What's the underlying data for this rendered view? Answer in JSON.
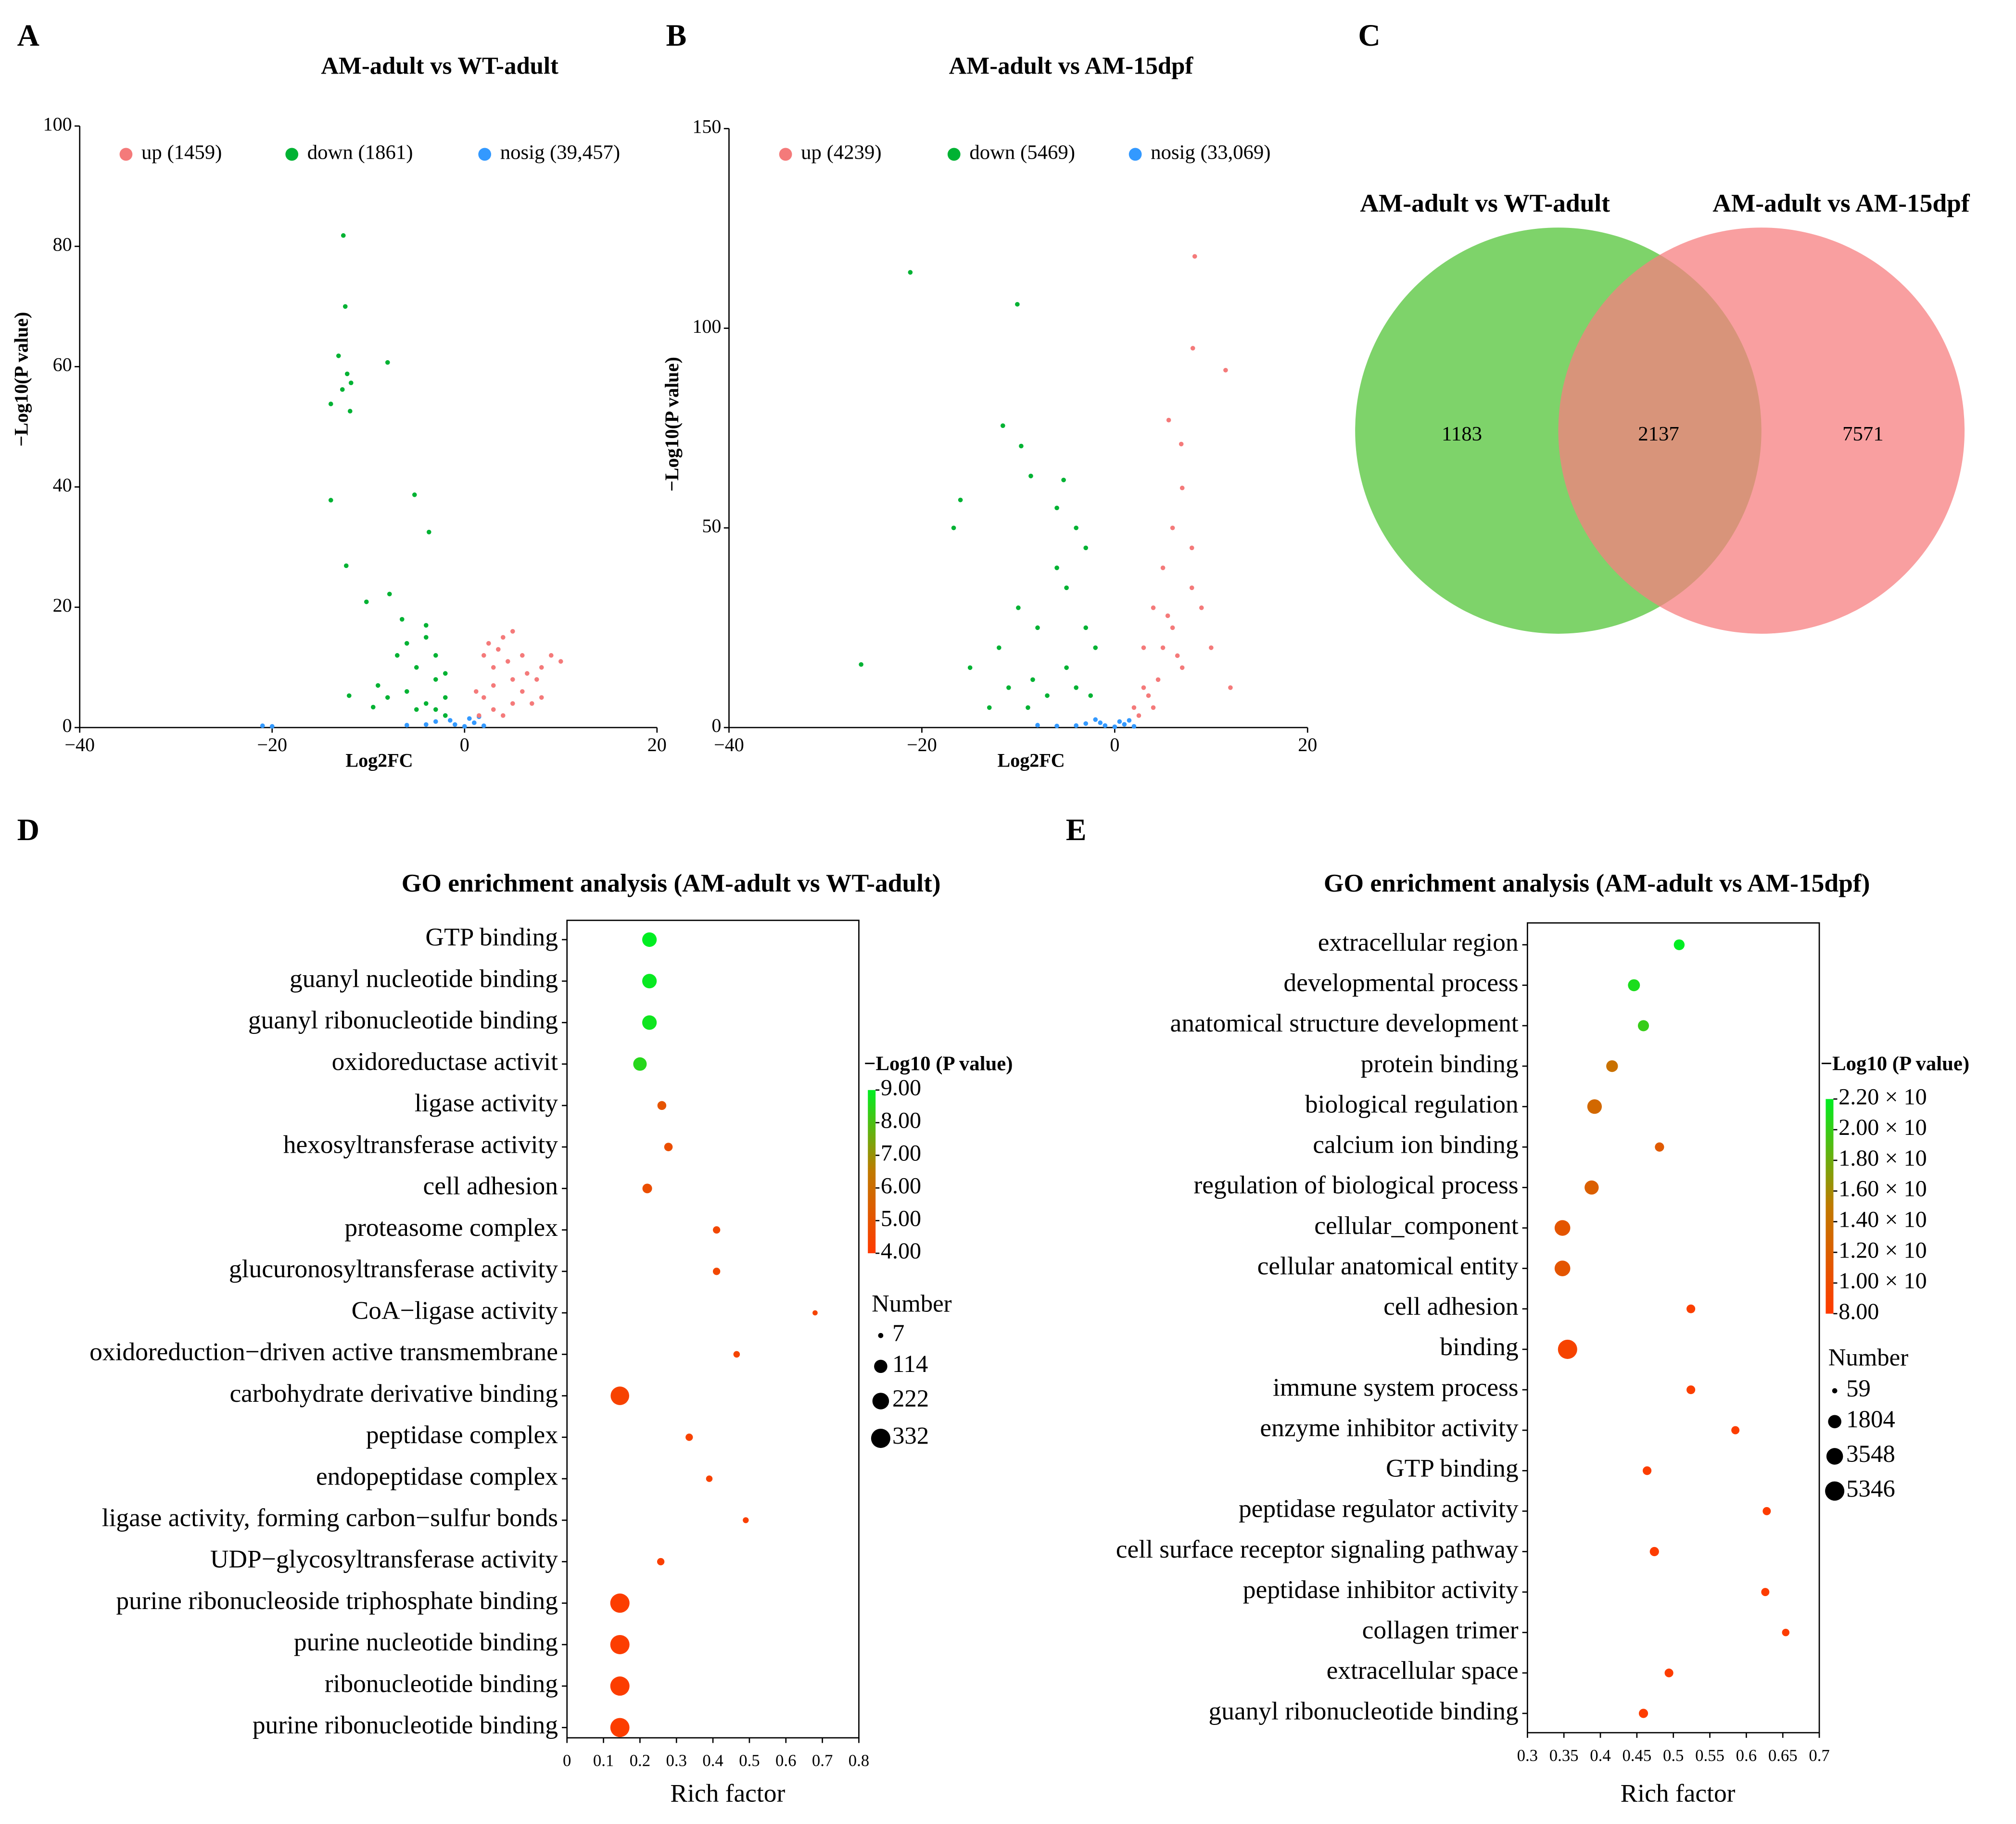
{
  "chart_data": [
    {
      "type": "volcano",
      "panel_label": "A",
      "title": "AM-adult vs WT-adult",
      "x_label": "Log2FC",
      "y_label": "−Log10(P value)",
      "xlim": [
        -40,
        20
      ],
      "xticks": [
        {
          "value": -40,
          "label": "−40"
        },
        {
          "value": -20,
          "label": "−20"
        },
        0,
        20
      ],
      "ylim": [
        0,
        100
      ],
      "yticks": [
        0,
        20,
        40,
        60,
        80,
        100
      ],
      "series": [
        {
          "name": "up (1459)",
          "color": "#f47a7a",
          "x": [
            2,
            3,
            4,
            5,
            3,
            5,
            6,
            8,
            9,
            10,
            2,
            4,
            6,
            7,
            1.5,
            3,
            5,
            8,
            2.5,
            4.5,
            6.5,
            1.2,
            3.5,
            7.5
          ],
          "values": [
            5,
            10,
            15,
            16,
            3,
            8,
            6,
            10,
            12,
            11,
            12,
            2,
            12,
            4,
            2,
            7,
            4,
            5,
            14,
            11,
            9,
            6,
            13,
            8
          ]
        },
        {
          "name": "down (1861)",
          "color": "#00b233",
          "x": [
            -12.6,
            -12.4,
            -13.1,
            -8,
            -12.2,
            -11.8,
            -12.7,
            -13.9,
            -11.9,
            -5.2,
            -13.9,
            -3.7,
            -12.3,
            -10.2,
            -7.8,
            -12,
            -9.5,
            -5,
            -4,
            -3,
            -6,
            -2,
            -3,
            -4,
            -7,
            -5,
            -2,
            -8,
            -3,
            -4,
            -6,
            -2,
            -9,
            -6.5
          ],
          "values": [
            81.8,
            70,
            61.8,
            60.7,
            58.8,
            57.3,
            56.2,
            53.8,
            52.6,
            38.7,
            37.8,
            32.5,
            26.9,
            20.9,
            22.2,
            5.3,
            3.4,
            10,
            15,
            8,
            6,
            5,
            3,
            4,
            12,
            3,
            2,
            5,
            12,
            17,
            14,
            9,
            7,
            18
          ]
        },
        {
          "name": "nosig (39,457)",
          "color": "#3399ff",
          "x": [
            -21,
            -20,
            -3,
            -1,
            0,
            1,
            -2,
            0.5,
            -4,
            2,
            -6,
            -1.5,
            1.5
          ],
          "values": [
            0.3,
            0.2,
            1,
            0.5,
            0.2,
            0.8,
            2,
            1.5,
            0.5,
            0.3,
            0.4,
            1.2,
            1.8
          ]
        }
      ]
    },
    {
      "type": "volcano",
      "panel_label": "B",
      "title": "AM-adult vs AM-15dpf",
      "x_label": "Log2FC",
      "y_label": "−Log10(P value)",
      "xlim": [
        -40,
        20
      ],
      "xticks": [
        {
          "value": -40,
          "label": "−40"
        },
        {
          "value": -20,
          "label": "−20"
        },
        0,
        20
      ],
      "ylim": [
        0,
        150
      ],
      "yticks": [
        0,
        50,
        100,
        150
      ],
      "series": [
        {
          "name": "up (4239)",
          "color": "#f47a7a",
          "x": [
            8.3,
            8.1,
            11.5,
            5.6,
            6.9,
            3,
            4,
            5,
            6,
            7,
            8,
            5,
            3,
            4,
            6,
            9,
            10,
            12,
            2,
            7,
            8,
            4.5,
            3.5,
            5.5,
            6.5,
            2.5
          ],
          "values": [
            118,
            95,
            89.5,
            77,
            71,
            20,
            30,
            40,
            50,
            60,
            45,
            20,
            10,
            5,
            25,
            30,
            20,
            10,
            5,
            15,
            35,
            12,
            8,
            28,
            18,
            3
          ]
        },
        {
          "name": "down (5469)",
          "color": "#00b233",
          "x": [
            -21.2,
            -10.1,
            -11.6,
            -9.7,
            -16,
            -8.7,
            -5.3,
            -16.7,
            -26.3,
            -15,
            -12,
            -10,
            -8,
            -6,
            -5,
            -4,
            -3,
            -2,
            -4,
            -7,
            -9,
            -11,
            -3,
            -5,
            -13,
            -6,
            -2.5,
            -8.5
          ],
          "values": [
            114,
            106,
            75.6,
            70.5,
            57,
            63,
            62,
            50,
            15.8,
            15,
            20,
            30,
            25,
            40,
            35,
            50,
            45,
            20,
            10,
            8,
            5,
            10,
            25,
            15,
            5,
            55,
            8,
            12
          ]
        },
        {
          "name": "nosig (33,069)",
          "color": "#3399ff",
          "x": [
            -3,
            -1,
            0,
            1,
            -2,
            0.5,
            -4,
            2,
            -6,
            -1.5,
            1.5,
            -8
          ],
          "values": [
            1,
            0.5,
            0.2,
            0.8,
            2,
            1.5,
            0.5,
            0.3,
            0.4,
            1.2,
            1.8,
            0.6
          ]
        }
      ]
    },
    {
      "type": "venn",
      "panel_label": "C",
      "sets": [
        {
          "name": "AM-adult vs WT-adult",
          "color": "#7ed36a"
        },
        {
          "name": "AM-adult vs AM-15dpf",
          "color": "#f77f80"
        }
      ],
      "values": [
        1183,
        2137,
        7571
      ]
    },
    {
      "type": "dot",
      "panel_label": "D",
      "title": "GO enrichment analysis (AM-adult vs WT-adult)",
      "x_label": "Rich factor",
      "categories": [
        "GTP binding",
        "guanyl nucleotide binding",
        "guanyl ribonucleotide binding",
        "oxidoreductase activit",
        "ligase activity",
        "hexosyltransferase activity",
        "cell adhesion",
        "proteasome complex",
        "glucuronosyltransferase activity",
        "CoA−ligase activity",
        "oxidoreduction−driven active transmembrane",
        "carbohydrate derivative binding",
        "peptidase complex",
        "endopeptidase complex",
        "ligase activity, forming carbon−sulfur bonds",
        "UDP−glycosyltransferase activity",
        "purine ribonucleoside triphosphate binding",
        "purine nucleotide binding",
        "ribonucleotide binding",
        "purine ribonucleotide binding"
      ],
      "values": [
        0.226,
        0.226,
        0.226,
        0.2,
        0.26,
        0.278,
        0.22,
        0.41,
        0.41,
        0.68,
        0.465,
        0.145,
        0.335,
        0.39,
        0.49,
        0.257,
        0.145,
        0.145,
        0.145,
        0.145
      ],
      "sizes": [
        150,
        150,
        150,
        120,
        30,
        25,
        40,
        15,
        15,
        7,
        10,
        300,
        15,
        10,
        8,
        15,
        332,
        330,
        330,
        325
      ],
      "color_values": [
        9,
        8.9,
        8.8,
        8.5,
        5,
        4.8,
        4.8,
        4.5,
        4.5,
        4.4,
        4.4,
        4.3,
        4.3,
        4.3,
        4.2,
        4.2,
        4.1,
        4.1,
        4.1,
        4.1
      ],
      "xlim": [
        0,
        0.8
      ],
      "xticks": [
        0,
        0.1,
        0.2,
        0.3,
        0.4,
        0.5,
        0.6,
        0.7,
        0.8
      ],
      "colorbar": {
        "title": "−Log10 (P value)",
        "lim": [
          4,
          9
        ],
        "colors": [
          "#ff3a00",
          "#c07a00",
          "#00ee22"
        ],
        "ticks": [
          {
            "value": 9,
            "label": "9.00"
          },
          {
            "value": 8,
            "label": "8.00"
          },
          {
            "value": 7,
            "label": "7.00"
          },
          {
            "value": 6,
            "label": "6.00"
          },
          {
            "value": 5,
            "label": "5.00"
          },
          {
            "value": 4,
            "label": "4.00"
          }
        ]
      },
      "size_legend": {
        "title": "Number",
        "ticks": [
          7,
          114,
          222,
          332
        ]
      }
    },
    {
      "type": "dot",
      "panel_label": "E",
      "title": "GO enrichment analysis (AM-adult vs AM-15dpf)",
      "x_label": "Rich factor",
      "categories": [
        "extracellular region",
        "developmental process",
        "anatomical structure development",
        "protein binding",
        "biological regulation",
        "calcium ion binding",
        "regulation of biological process",
        "cellular_component",
        "cellular anatomical entity",
        "cell adhesion",
        "binding",
        "immune system process",
        "enzyme inhibitor activity",
        "GTP binding",
        "peptidase regulator activity",
        "cell surface receptor signaling pathway",
        "peptidase inhibitor activity",
        "collagen trimer",
        "extracellular space",
        "guanyl ribonucleotide binding"
      ],
      "values": [
        0.508,
        0.446,
        0.459,
        0.416,
        0.392,
        0.481,
        0.388,
        0.348,
        0.348,
        0.524,
        0.355,
        0.524,
        0.585,
        0.464,
        0.628,
        0.474,
        0.626,
        0.654,
        0.494,
        0.459
      ],
      "sizes": [
        900,
        1300,
        1000,
        1200,
        2400,
        500,
        2200,
        3000,
        3000,
        400,
        5346,
        400,
        300,
        400,
        300,
        500,
        300,
        200,
        400,
        500
      ],
      "color_values": [
        22,
        21,
        20,
        14,
        13,
        11.5,
        12,
        11,
        11,
        8.5,
        9,
        8.5,
        8.3,
        8.3,
        8.2,
        8.2,
        8.2,
        8.2,
        8.2,
        8.2
      ],
      "xlim": [
        0.3,
        0.7
      ],
      "xticks": [
        0.3,
        0.35,
        0.4,
        0.45,
        0.5,
        0.55,
        0.6,
        0.65,
        0.7
      ],
      "colorbar": {
        "title": "−Log10 (P value)",
        "lim": [
          8,
          22
        ],
        "colors": [
          "#ff3a00",
          "#c07a00",
          "#00ee22"
        ],
        "ticks": [
          {
            "value": 22,
            "label": "2.20 × 10"
          },
          {
            "value": 20,
            "label": "2.00 × 10"
          },
          {
            "value": 18,
            "label": "1.80 × 10"
          },
          {
            "value": 16,
            "label": "1.60 × 10"
          },
          {
            "value": 14,
            "label": "1.40 × 10"
          },
          {
            "value": 12,
            "label": "1.20 × 10"
          },
          {
            "value": 10,
            "label": "1.00 × 10"
          },
          {
            "value": 8,
            "label": "8.00"
          }
        ]
      },
      "size_legend": {
        "title": "Number",
        "ticks": [
          59,
          1804,
          3548,
          5346
        ]
      }
    }
  ]
}
